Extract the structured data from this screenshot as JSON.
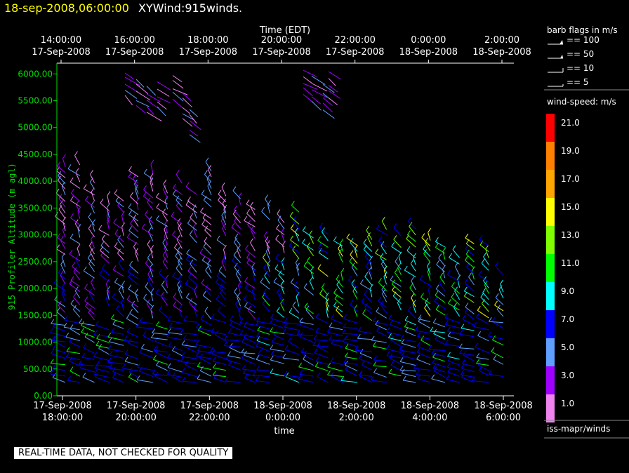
{
  "header": {
    "date": "18-sep-2008,06:00:00",
    "name": "XYWind:915winds."
  },
  "chart_data": {
    "type": "scatter",
    "subtype": "wind-barbs",
    "top_axis_title": "Time (EDT)",
    "top_ticks": [
      [
        "14:00:00",
        "17-Sep-2008"
      ],
      [
        "16:00:00",
        "17-Sep-2008"
      ],
      [
        "18:00:00",
        "17-Sep-2008"
      ],
      [
        "20:00:00",
        "17-Sep-2008"
      ],
      [
        "22:00:00",
        "17-Sep-2008"
      ],
      [
        "0:00:00",
        "18-Sep-2008"
      ],
      [
        "2:00:00",
        "18-Sep-2008"
      ]
    ],
    "bottom_ticks": [
      [
        "17-Sep-2008",
        "18:00:00"
      ],
      [
        "17-Sep-2008",
        "20:00:00"
      ],
      [
        "17-Sep-2008",
        "22:00:00"
      ],
      [
        "18-Sep-2008",
        "0:00:00"
      ],
      [
        "18-Sep-2008",
        "2:00:00"
      ],
      [
        "18-Sep-2008",
        "4:00:00"
      ],
      [
        "18-Sep-2008",
        "6:00:00"
      ]
    ],
    "xlabel": "time",
    "ylabel": "915 Profiler Altitude (m agl)",
    "ylim": [
      0,
      6200
    ],
    "yticks": [
      "0.00",
      "500.00",
      "1000.00",
      "1500.00",
      "2000.00",
      "2500.00",
      "3000.00",
      "3500.00",
      "4000.00",
      "4500.00",
      "5000.00",
      "5500.00",
      "6000.00"
    ],
    "grid": false
  },
  "legend": {
    "barb_title": "barb flags in m/s",
    "barb_items": [
      "== 100",
      "== 50",
      "== 10",
      "== 5"
    ],
    "speed_title": "wind-speed: m/s",
    "speed_labels": [
      "21.0",
      "19.0",
      "17.0",
      "15.0",
      "13.0",
      "11.0",
      "9.0",
      "7.0",
      "5.0",
      "3.0",
      "1.0"
    ],
    "speed_colors": [
      "#ff0000",
      "#ff7f00",
      "#ffa500",
      "#ffff00",
      "#7fff00",
      "#00ff00",
      "#00ffff",
      "#0000ff",
      "#5f9fff",
      "#9f00ff",
      "#ee82ee"
    ],
    "footer": "iss-mapr/winds"
  },
  "quality_note": "REAL-TIME DATA, NOT CHECKED FOR QUALITY"
}
